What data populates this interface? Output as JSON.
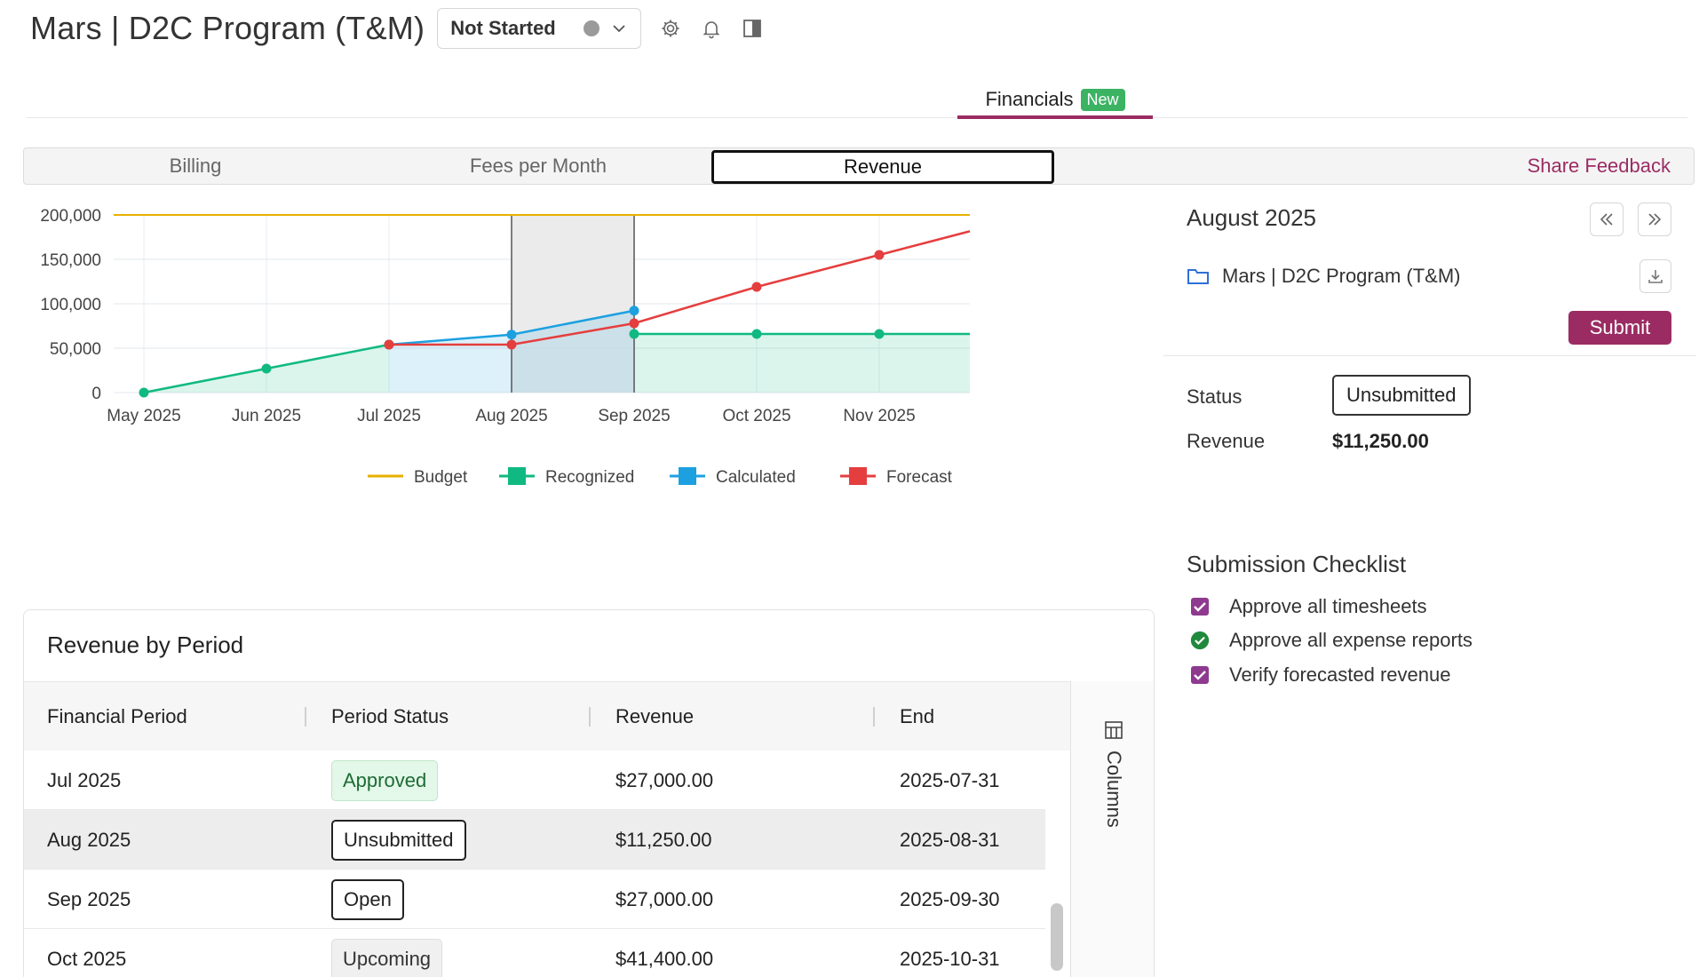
{
  "header": {
    "title": "Mars | D2C Program (T&M)",
    "status": "Not Started",
    "icons": [
      "gear-icon",
      "bell-icon",
      "panel-icon"
    ]
  },
  "top_tabs": [
    {
      "label": "Financials",
      "badge": "New"
    }
  ],
  "sub_tabs": {
    "billing": "Billing",
    "fees": "Fees per Month",
    "revenue": "Revenue",
    "share_feedback": "Share Feedback"
  },
  "chart_data": {
    "type": "line",
    "categories": [
      "May 2025",
      "Jun 2025",
      "Jul 2025",
      "Aug 2025",
      "Sep 2025",
      "Oct 2025",
      "Nov 2025"
    ],
    "ylim": [
      0,
      200000
    ],
    "yticks": [
      "0",
      "50,000",
      "100,000",
      "150,000",
      "200,000"
    ],
    "ytick_values": [
      0,
      50000,
      100000,
      150000,
      200000
    ],
    "series": [
      {
        "name": "Budget",
        "color": "#e8b000",
        "values": [
          200000,
          200000,
          200000,
          200000,
          200000,
          200000,
          200000
        ]
      },
      {
        "name": "Recognized",
        "color": "#10b981",
        "values": [
          0,
          27000,
          54000,
          null,
          66000,
          66000,
          66000
        ]
      },
      {
        "name": "Calculated",
        "color": "#1ca0e0",
        "values": [
          null,
          null,
          54000,
          65250,
          92250,
          null,
          null
        ]
      },
      {
        "name": "Forecast",
        "color": "#e53e3e",
        "values": [
          null,
          null,
          54000,
          54000,
          78000,
          119000,
          155000
        ]
      }
    ],
    "highlight": [
      "Aug 2025",
      "Sep 2025"
    ]
  },
  "right_panel": {
    "period": "August 2025",
    "project": "Mars | D2C Program (T&M)",
    "submit": "Submit",
    "status_label": "Status",
    "status_value": "Unsubmitted",
    "revenue_label": "Revenue",
    "revenue_value": "$11,250.00",
    "checklist_title": "Submission Checklist",
    "checklist": [
      "Approve all timesheets",
      "Approve all expense reports",
      "Verify forecasted revenue"
    ]
  },
  "table": {
    "title": "Revenue by Period",
    "columns": [
      "Financial Period",
      "Period Status",
      "Revenue",
      "End"
    ],
    "rows": [
      {
        "period": "Jul 2025",
        "status": "Approved",
        "revenue": "$27,000.00",
        "end": "2025-07-31"
      },
      {
        "period": "Aug 2025",
        "status": "Unsubmitted",
        "revenue": "$11,250.00",
        "end": "2025-08-31"
      },
      {
        "period": "Sep 2025",
        "status": "Open",
        "revenue": "$27,000.00",
        "end": "2025-09-30"
      },
      {
        "period": "Oct 2025",
        "status": "Upcoming",
        "revenue": "$41,400.00",
        "end": "2025-10-31"
      }
    ],
    "columns_button": "Columns"
  }
}
